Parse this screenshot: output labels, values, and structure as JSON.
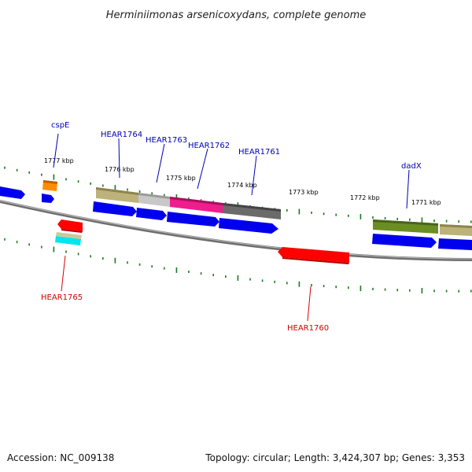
{
  "title": "Herminiimonas arsenicoxydans, complete genome",
  "footer": {
    "accession": "Accession: NC_009138",
    "topology": "Topology: circular; Length: 3,424,307 bp; Genes: 3,353"
  },
  "colors": {
    "forward_label": "#0000b4",
    "reverse_label": "#d20000",
    "tick": "#1a7a1a",
    "genome_line": "#8a8a8a"
  },
  "ticks": [
    "1777 kbp",
    "1776 kbp",
    "1775 kbp",
    "1774 kbp",
    "1773 kbp",
    "1772 kbp",
    "1771 kbp"
  ],
  "genes": {
    "forward": [
      "cspE",
      "HEAR1764",
      "HEAR1763",
      "HEAR1762",
      "HEAR1761",
      "dadX"
    ],
    "reverse": [
      "HEAR1765",
      "HEAR1760"
    ]
  }
}
